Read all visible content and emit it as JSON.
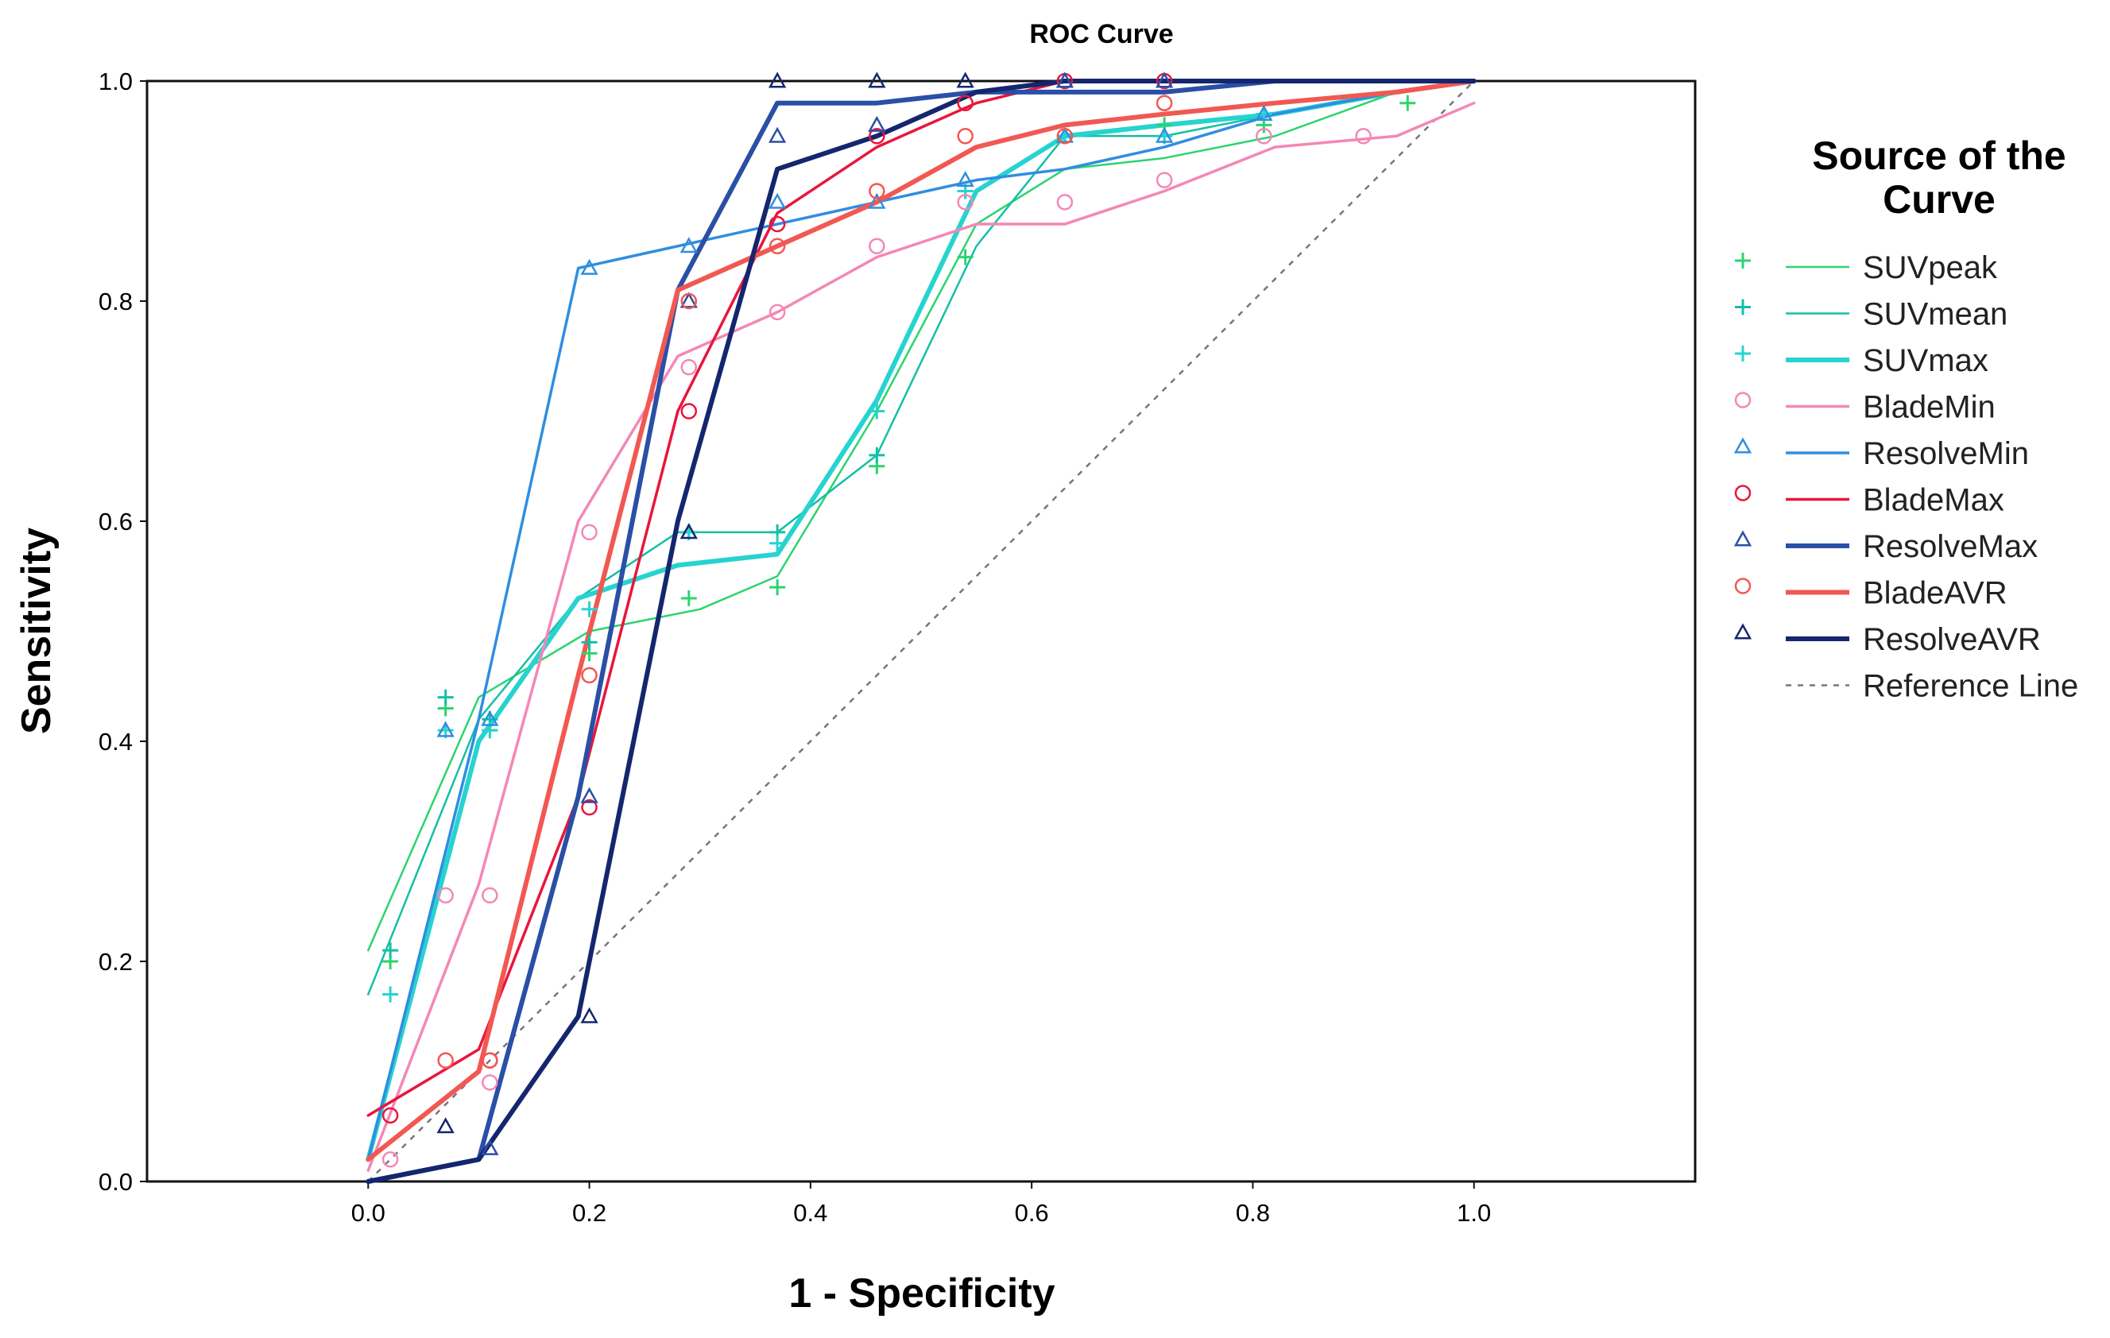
{
  "chart_data": {
    "type": "line",
    "title": "ROC Curve",
    "xlabel": "1 - Specificity",
    "ylabel": "Sensitivity",
    "xlim": [
      -0.2,
      1.2
    ],
    "ylim": [
      0.0,
      1.0
    ],
    "xticks": [
      "0.0",
      "0.2",
      "0.4",
      "0.6",
      "0.8",
      "1.0"
    ],
    "yticks": [
      "0.0",
      "0.2",
      "0.4",
      "0.6",
      "0.8",
      "1.0"
    ],
    "grid": false,
    "legend_title_lines": [
      "Source of the",
      "Curve"
    ],
    "legend_position": "right",
    "series": [
      {
        "name": "SUVpeak",
        "color": "#2bd46e",
        "marker": "plus",
        "line_weight": "thin",
        "line": [
          [
            0,
            0.21
          ],
          [
            0.1,
            0.44
          ],
          [
            0.2,
            0.5
          ],
          [
            0.3,
            0.52
          ],
          [
            0.37,
            0.55
          ],
          [
            0.46,
            0.7
          ],
          [
            0.55,
            0.87
          ],
          [
            0.63,
            0.92
          ],
          [
            0.72,
            0.93
          ],
          [
            0.82,
            0.95
          ],
          [
            0.93,
            0.99
          ],
          [
            1.0,
            1.0
          ]
        ],
        "points": [
          [
            0.02,
            0.2
          ],
          [
            0.07,
            0.43
          ],
          [
            0.11,
            0.41
          ],
          [
            0.2,
            0.48
          ],
          [
            0.29,
            0.53
          ],
          [
            0.37,
            0.54
          ],
          [
            0.46,
            0.65
          ],
          [
            0.54,
            0.84
          ],
          [
            0.63,
            0.95
          ],
          [
            0.72,
            0.96
          ],
          [
            0.81,
            0.96
          ],
          [
            0.94,
            0.98
          ]
        ]
      },
      {
        "name": "SUVmean",
        "color": "#14bfa6",
        "marker": "plus",
        "line_weight": "thin",
        "line": [
          [
            0,
            0.17
          ],
          [
            0.1,
            0.42
          ],
          [
            0.19,
            0.53
          ],
          [
            0.28,
            0.59
          ],
          [
            0.37,
            0.59
          ],
          [
            0.46,
            0.66
          ],
          [
            0.55,
            0.85
          ],
          [
            0.63,
            0.95
          ],
          [
            0.72,
            0.95
          ],
          [
            0.82,
            0.97
          ],
          [
            0.93,
            0.99
          ],
          [
            1.0,
            1.0
          ]
        ],
        "points": [
          [
            0.02,
            0.21
          ],
          [
            0.07,
            0.44
          ],
          [
            0.11,
            0.42
          ],
          [
            0.2,
            0.49
          ],
          [
            0.29,
            0.59
          ],
          [
            0.37,
            0.59
          ],
          [
            0.46,
            0.66
          ],
          [
            0.54,
            0.9
          ],
          [
            0.63,
            0.95
          ],
          [
            0.72,
            0.95
          ],
          [
            0.81,
            0.97
          ]
        ]
      },
      {
        "name": "SUVmax",
        "color": "#27d3d0",
        "marker": "plus",
        "line_weight": "thick",
        "line": [
          [
            0,
            0.02
          ],
          [
            0.1,
            0.4
          ],
          [
            0.19,
            0.53
          ],
          [
            0.28,
            0.56
          ],
          [
            0.37,
            0.57
          ],
          [
            0.46,
            0.71
          ],
          [
            0.55,
            0.9
          ],
          [
            0.63,
            0.95
          ],
          [
            0.72,
            0.96
          ],
          [
            0.82,
            0.97
          ],
          [
            0.93,
            0.99
          ],
          [
            1.0,
            1.0
          ]
        ],
        "points": [
          [
            0.02,
            0.17
          ],
          [
            0.07,
            0.41
          ],
          [
            0.11,
            0.41
          ],
          [
            0.2,
            0.52
          ],
          [
            0.29,
            0.59
          ],
          [
            0.37,
            0.58
          ],
          [
            0.46,
            0.7
          ],
          [
            0.54,
            0.9
          ],
          [
            0.63,
            0.95
          ],
          [
            0.72,
            0.95
          ],
          [
            0.81,
            0.97
          ]
        ]
      },
      {
        "name": "BladeMin",
        "color": "#f487b6",
        "marker": "circle",
        "line_weight": "medium",
        "line": [
          [
            0,
            0.01
          ],
          [
            0.1,
            0.27
          ],
          [
            0.19,
            0.6
          ],
          [
            0.28,
            0.75
          ],
          [
            0.37,
            0.79
          ],
          [
            0.46,
            0.84
          ],
          [
            0.55,
            0.87
          ],
          [
            0.63,
            0.87
          ],
          [
            0.72,
            0.9
          ],
          [
            0.82,
            0.94
          ],
          [
            0.93,
            0.95
          ],
          [
            1.0,
            0.98
          ]
        ],
        "points": [
          [
            0.02,
            0.02
          ],
          [
            0.07,
            0.26
          ],
          [
            0.11,
            0.26
          ],
          [
            0.2,
            0.59
          ],
          [
            0.29,
            0.74
          ],
          [
            0.37,
            0.79
          ],
          [
            0.46,
            0.85
          ],
          [
            0.54,
            0.89
          ],
          [
            0.63,
            0.89
          ],
          [
            0.72,
            0.91
          ],
          [
            0.81,
            0.95
          ],
          [
            0.9,
            0.95
          ],
          [
            0.11,
            0.09
          ]
        ]
      },
      {
        "name": "ResolveMin",
        "color": "#2f8ee0",
        "marker": "triangle",
        "line_weight": "medium",
        "line": [
          [
            0,
            0.02
          ],
          [
            0.1,
            0.42
          ],
          [
            0.19,
            0.83
          ],
          [
            0.28,
            0.85
          ],
          [
            0.37,
            0.87
          ],
          [
            0.46,
            0.89
          ],
          [
            0.55,
            0.91
          ],
          [
            0.63,
            0.92
          ],
          [
            0.72,
            0.94
          ],
          [
            0.82,
            0.97
          ],
          [
            0.93,
            0.99
          ],
          [
            1.0,
            1.0
          ]
        ],
        "points": [
          [
            0.07,
            0.41
          ],
          [
            0.11,
            0.42
          ],
          [
            0.2,
            0.83
          ],
          [
            0.29,
            0.85
          ],
          [
            0.37,
            0.89
          ],
          [
            0.46,
            0.89
          ],
          [
            0.54,
            0.91
          ],
          [
            0.63,
            0.95
          ],
          [
            0.72,
            0.95
          ],
          [
            0.81,
            0.97
          ]
        ]
      },
      {
        "name": "BladeMax",
        "color": "#e8163c",
        "marker": "circle",
        "line_weight": "medium",
        "line": [
          [
            0,
            0.06
          ],
          [
            0.1,
            0.12
          ],
          [
            0.19,
            0.35
          ],
          [
            0.28,
            0.7
          ],
          [
            0.37,
            0.88
          ],
          [
            0.46,
            0.94
          ],
          [
            0.55,
            0.98
          ],
          [
            0.63,
            1.0
          ],
          [
            0.72,
            1.0
          ],
          [
            0.82,
            1.0
          ],
          [
            0.93,
            1.0
          ],
          [
            1.0,
            1.0
          ]
        ],
        "points": [
          [
            0.02,
            0.06
          ],
          [
            0.11,
            0.11
          ],
          [
            0.2,
            0.34
          ],
          [
            0.29,
            0.7
          ],
          [
            0.37,
            0.87
          ],
          [
            0.46,
            0.95
          ],
          [
            0.54,
            0.98
          ],
          [
            0.63,
            1.0
          ],
          [
            0.72,
            1.0
          ]
        ]
      },
      {
        "name": "ResolveMax",
        "color": "#2a4fa6",
        "marker": "triangle",
        "line_weight": "thick",
        "line": [
          [
            0,
            0.0
          ],
          [
            0.1,
            0.02
          ],
          [
            0.19,
            0.35
          ],
          [
            0.28,
            0.81
          ],
          [
            0.37,
            0.98
          ],
          [
            0.46,
            0.98
          ],
          [
            0.55,
            0.99
          ],
          [
            0.63,
            0.99
          ],
          [
            0.72,
            0.99
          ],
          [
            0.82,
            1.0
          ],
          [
            0.93,
            1.0
          ],
          [
            1.0,
            1.0
          ]
        ],
        "points": [
          [
            0.11,
            0.03
          ],
          [
            0.2,
            0.35
          ],
          [
            0.29,
            0.8
          ],
          [
            0.37,
            0.95
          ],
          [
            0.46,
            0.96
          ],
          [
            0.63,
            1.0
          ],
          [
            0.72,
            1.0
          ]
        ]
      },
      {
        "name": "BladeAVR",
        "color": "#f25852",
        "marker": "circle",
        "line_weight": "thick",
        "line": [
          [
            0,
            0.02
          ],
          [
            0.1,
            0.1
          ],
          [
            0.19,
            0.46
          ],
          [
            0.28,
            0.81
          ],
          [
            0.37,
            0.85
          ],
          [
            0.46,
            0.89
          ],
          [
            0.55,
            0.94
          ],
          [
            0.63,
            0.96
          ],
          [
            0.72,
            0.97
          ],
          [
            0.82,
            0.98
          ],
          [
            0.93,
            0.99
          ],
          [
            1.0,
            1.0
          ]
        ],
        "points": [
          [
            0.07,
            0.11
          ],
          [
            0.11,
            0.11
          ],
          [
            0.2,
            0.46
          ],
          [
            0.29,
            0.8
          ],
          [
            0.37,
            0.85
          ],
          [
            0.46,
            0.9
          ],
          [
            0.54,
            0.95
          ],
          [
            0.63,
            0.95
          ],
          [
            0.72,
            0.98
          ]
        ]
      },
      {
        "name": "ResolveAVR",
        "color": "#14266e",
        "marker": "triangle",
        "line_weight": "thick",
        "line": [
          [
            0,
            0.0
          ],
          [
            0.1,
            0.02
          ],
          [
            0.19,
            0.15
          ],
          [
            0.28,
            0.6
          ],
          [
            0.37,
            0.92
          ],
          [
            0.46,
            0.95
          ],
          [
            0.55,
            0.99
          ],
          [
            0.63,
            1.0
          ],
          [
            0.72,
            1.0
          ],
          [
            0.82,
            1.0
          ],
          [
            0.93,
            1.0
          ],
          [
            1.0,
            1.0
          ]
        ],
        "points": [
          [
            0.07,
            0.05
          ],
          [
            0.2,
            0.15
          ],
          [
            0.29,
            0.59
          ],
          [
            0.37,
            1.0
          ],
          [
            0.46,
            1.0
          ],
          [
            0.54,
            1.0
          ]
        ]
      }
    ],
    "reference_line": {
      "name": "Reference Line",
      "color": "#777777",
      "points": [
        [
          0,
          0
        ],
        [
          1,
          1
        ]
      ]
    }
  }
}
